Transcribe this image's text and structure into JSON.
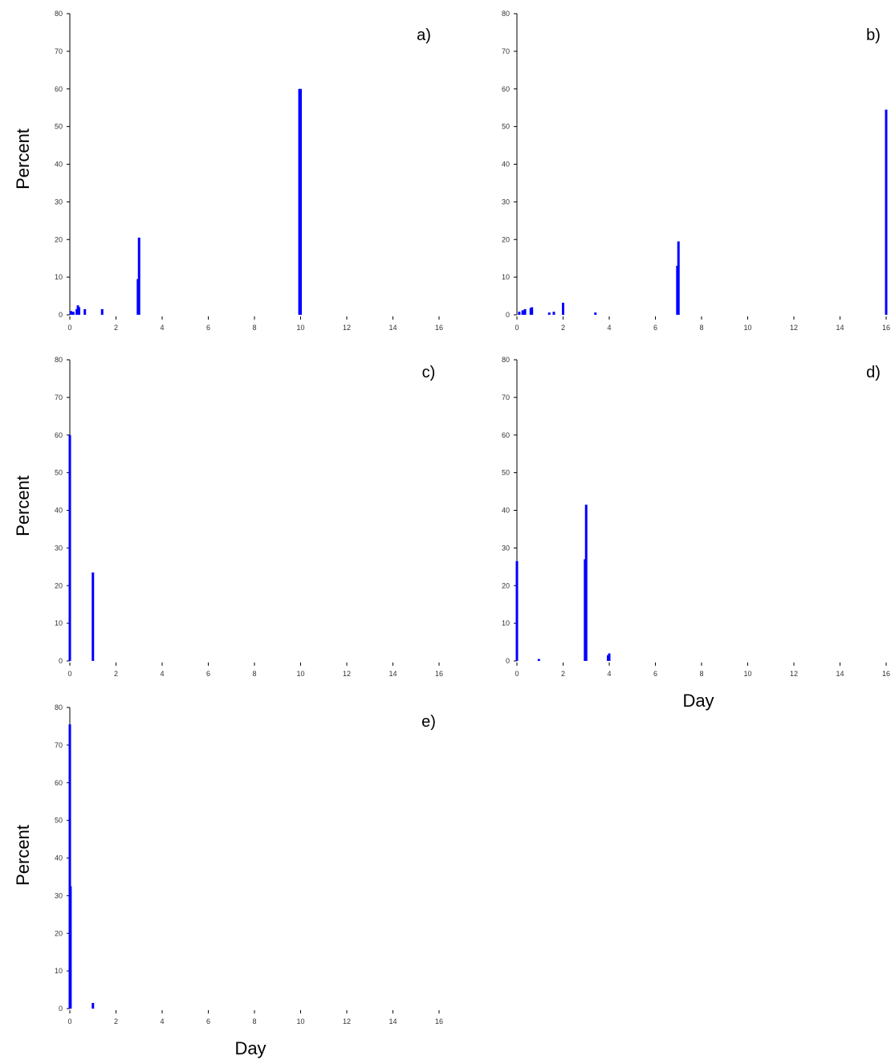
{
  "chart_data": [
    {
      "type": "bar",
      "label": "a)",
      "ylabel": "Percent",
      "xlabel": "",
      "xlim": [
        0,
        16
      ],
      "ylim": [
        0,
        80
      ],
      "xticks": [
        0,
        2,
        4,
        6,
        8,
        10,
        12,
        14,
        16
      ],
      "yticks": [
        0,
        10,
        20,
        30,
        40,
        50,
        60,
        70,
        80
      ],
      "bar_color": "#0000ff",
      "x": [
        0.05,
        0.15,
        0.3,
        0.35,
        0.4,
        0.65,
        1.4,
        2.95,
        3.0,
        9.95,
        10.0
      ],
      "values": [
        1,
        0.8,
        1.5,
        2.5,
        2,
        1.5,
        1.5,
        9.5,
        20.5,
        60,
        60
      ]
    },
    {
      "type": "bar",
      "label": "b)",
      "ylabel": "",
      "xlabel": "",
      "xlim": [
        0,
        16
      ],
      "ylim": [
        0,
        80
      ],
      "xticks": [
        0,
        2,
        4,
        6,
        8,
        10,
        12,
        14,
        16
      ],
      "yticks": [
        0,
        10,
        20,
        30,
        40,
        50,
        60,
        70,
        80
      ],
      "bar_color": "#0000ff",
      "x": [
        0.1,
        0.25,
        0.35,
        0.6,
        0.65,
        1.4,
        1.6,
        2.0,
        3.4,
        6.95,
        7.0,
        16.0
      ],
      "values": [
        0.8,
        1.2,
        1.5,
        1.8,
        2,
        0.6,
        0.8,
        3.2,
        0.6,
        13,
        19.5,
        54.5
      ]
    },
    {
      "type": "bar",
      "label": "c)",
      "ylabel": "Percent",
      "xlabel": "",
      "xlim": [
        0,
        16
      ],
      "ylim": [
        0,
        80
      ],
      "xticks": [
        0,
        2,
        4,
        6,
        8,
        10,
        12,
        14,
        16
      ],
      "yticks": [
        0,
        10,
        20,
        30,
        40,
        50,
        60,
        70,
        80
      ],
      "bar_color": "#0000ff",
      "x": [
        0.0,
        1.0
      ],
      "values": [
        60,
        23.5
      ]
    },
    {
      "type": "bar",
      "label": "d)",
      "ylabel": "",
      "xlabel": "Day",
      "xlim": [
        0,
        16
      ],
      "ylim": [
        0,
        80
      ],
      "xticks": [
        0,
        2,
        4,
        6,
        8,
        10,
        12,
        14,
        16
      ],
      "yticks": [
        0,
        10,
        20,
        30,
        40,
        50,
        60,
        70,
        80
      ],
      "bar_color": "#0000ff",
      "x": [
        0.0,
        0.95,
        2.95,
        3.0,
        3.95,
        4.0
      ],
      "values": [
        26.5,
        0.5,
        27,
        41.5,
        1.5,
        2
      ]
    },
    {
      "type": "bar",
      "label": "e)",
      "ylabel": "Percent",
      "xlabel": "Day",
      "xlim": [
        0,
        16
      ],
      "ylim": [
        0,
        80
      ],
      "xticks": [
        0,
        2,
        4,
        6,
        8,
        10,
        12,
        14,
        16
      ],
      "yticks": [
        0,
        10,
        20,
        30,
        40,
        50,
        60,
        70,
        80
      ],
      "bar_color": "#0000ff",
      "x": [
        0.0,
        0.03,
        1.0
      ],
      "values": [
        75.5,
        32.5,
        1.5
      ]
    }
  ]
}
